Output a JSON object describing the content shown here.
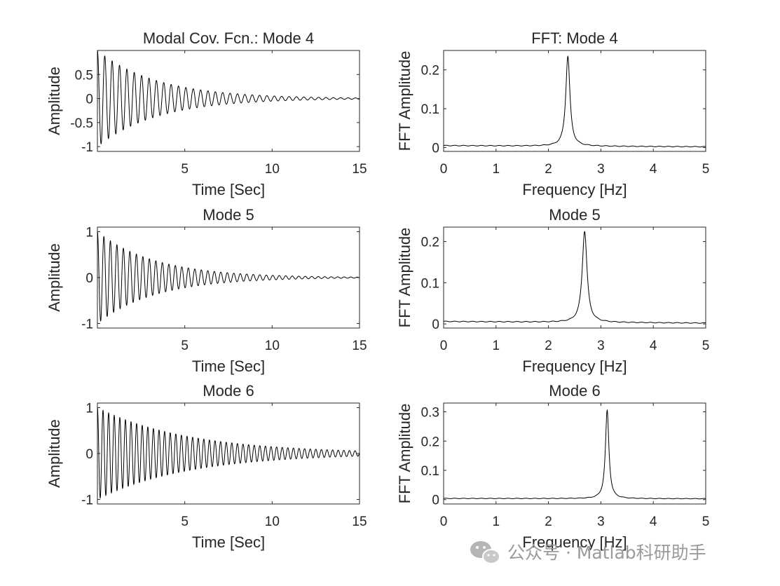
{
  "chart_data": [
    {
      "type": "line",
      "title": "Modal Cov. Fcn.: Mode 4",
      "xlabel": "Time [Sec]",
      "ylabel": "Amplitude",
      "xlim": [
        0,
        15
      ],
      "ylim": [
        -1.1,
        1.0
      ],
      "xticks": [
        5,
        10,
        15
      ],
      "yticks": [
        -1,
        -0.5,
        0,
        0.5
      ],
      "series": [
        {
          "model": "damped_cosine",
          "amplitude": 1.0,
          "decay_per_sec": 0.29,
          "frequency_hz": 2.37
        }
      ]
    },
    {
      "type": "line",
      "title": "FFT: Mode 4",
      "xlabel": "Frequency [Hz]",
      "ylabel": "FFT Amplitude",
      "xlim": [
        0,
        5
      ],
      "ylim": [
        -0.01,
        0.25
      ],
      "xticks": [
        0,
        1,
        2,
        3,
        4,
        5
      ],
      "yticks": [
        0,
        0.1,
        0.2
      ],
      "series": [
        {
          "model": "resonance_peak",
          "peak_hz": 2.37,
          "peak": 0.235,
          "half_width_hz": 0.048,
          "base": 0.005,
          "base_right": 0.002
        }
      ]
    },
    {
      "type": "line",
      "title": "Mode 5",
      "xlabel": "Time [Sec]",
      "ylabel": "Amplitude",
      "xlim": [
        0,
        15
      ],
      "ylim": [
        -1.1,
        1.1
      ],
      "xticks": [
        5,
        10,
        15
      ],
      "yticks": [
        -1,
        0,
        1
      ],
      "series": [
        {
          "model": "damped_cosine",
          "amplitude": 1.0,
          "decay_per_sec": 0.3,
          "frequency_hz": 2.69
        }
      ]
    },
    {
      "type": "line",
      "title": "Mode 5",
      "xlabel": "Frequency [Hz]",
      "ylabel": "FFT Amplitude",
      "xlim": [
        0,
        5
      ],
      "ylim": [
        -0.01,
        0.235
      ],
      "xticks": [
        0,
        1,
        2,
        3,
        4,
        5
      ],
      "yticks": [
        0,
        0.1,
        0.2
      ],
      "series": [
        {
          "model": "resonance_peak",
          "peak_hz": 2.69,
          "peak": 0.225,
          "half_width_hz": 0.055,
          "base": 0.006,
          "base_right": 0.002
        }
      ]
    },
    {
      "type": "line",
      "title": "Mode 6",
      "xlabel": "Time [Sec]",
      "ylabel": "Amplitude",
      "xlim": [
        0,
        15
      ],
      "ylim": [
        -1.1,
        1.1
      ],
      "xticks": [
        5,
        10,
        15
      ],
      "yticks": [
        -1,
        0,
        1
      ],
      "series": [
        {
          "model": "damped_cosine",
          "amplitude": 1.0,
          "decay_per_sec": 0.19,
          "frequency_hz": 3.12
        }
      ]
    },
    {
      "type": "line",
      "title": "Mode 6",
      "xlabel": "Frequency [Hz]",
      "ylabel": "FFT Amplitude",
      "xlim": [
        0,
        5
      ],
      "ylim": [
        -0.015,
        0.33
      ],
      "xticks": [
        0,
        1,
        2,
        3,
        4,
        5
      ],
      "yticks": [
        0,
        0.1,
        0.2,
        0.3
      ],
      "series": [
        {
          "model": "resonance_peak",
          "peak_hz": 3.12,
          "peak": 0.305,
          "half_width_hz": 0.04,
          "base": 0.004,
          "base_right": 0.003
        }
      ]
    }
  ],
  "watermark": {
    "text": "公众号 · Matlab科研助手"
  }
}
